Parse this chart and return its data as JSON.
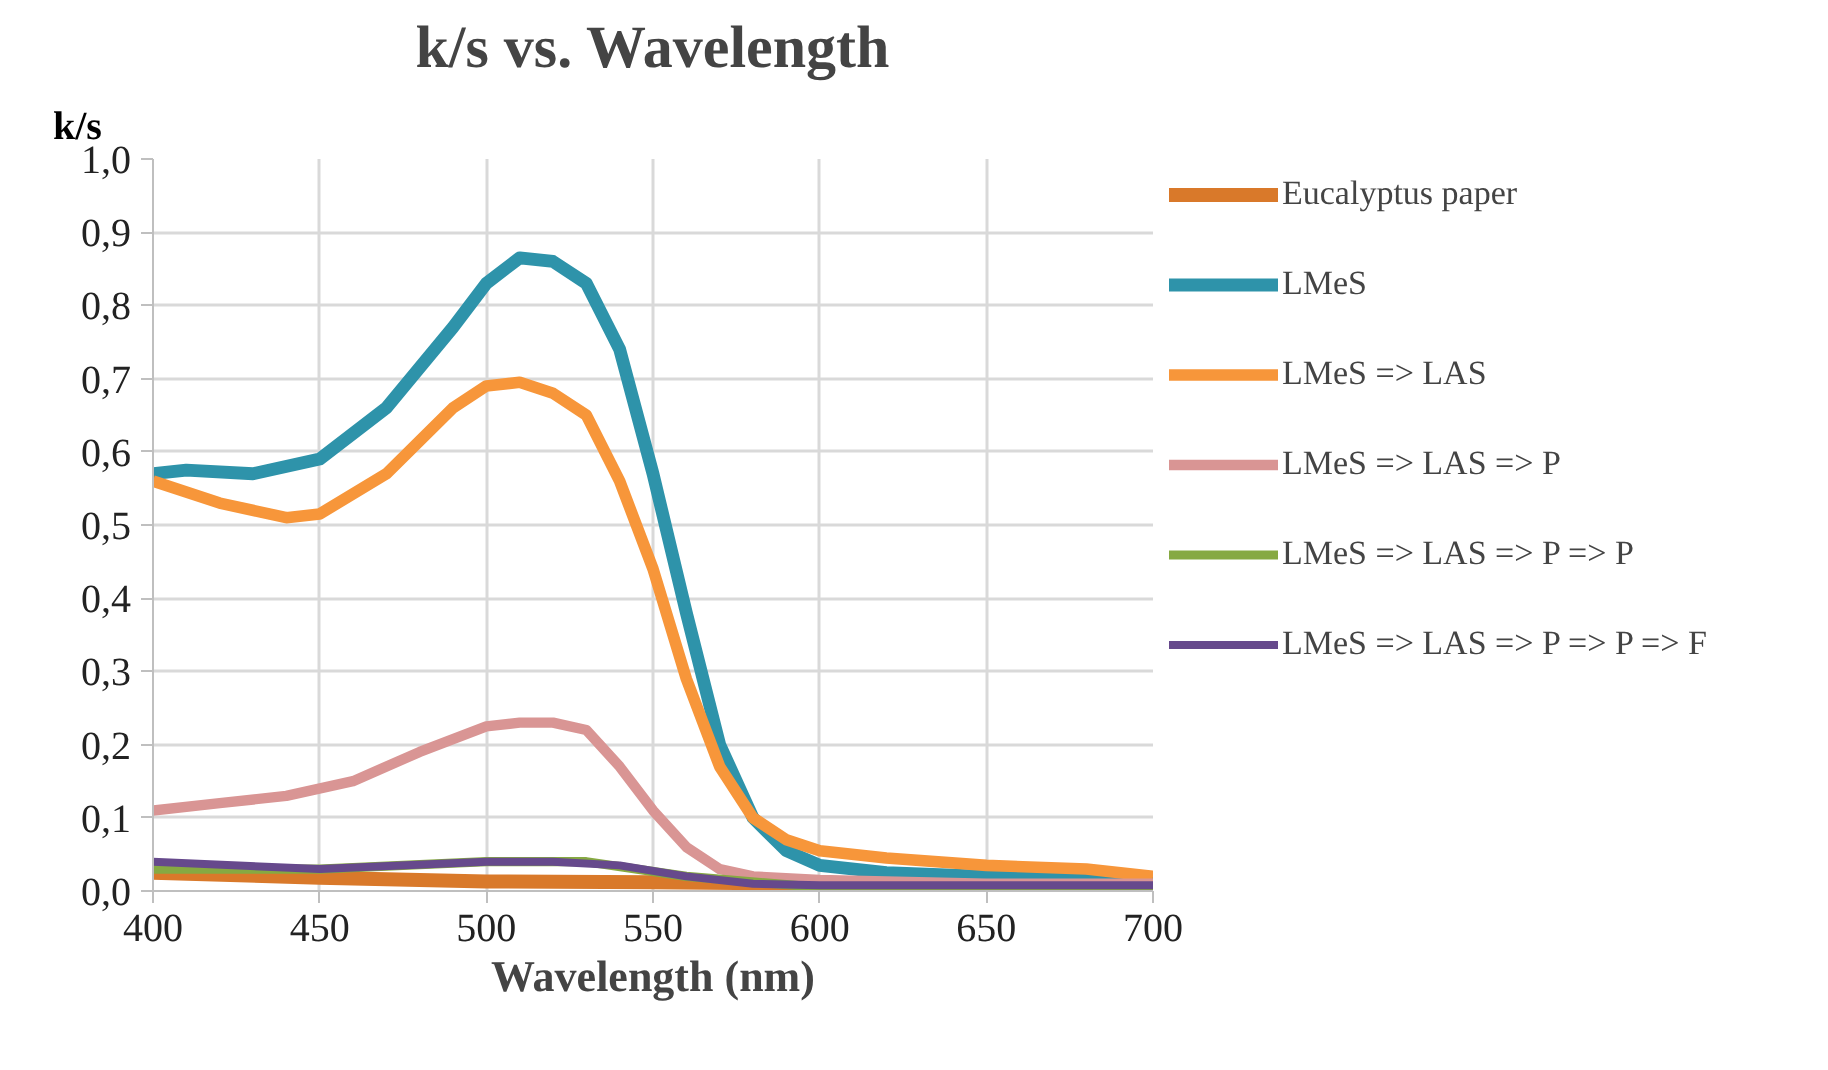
{
  "chart_data": {
    "type": "line",
    "title": "k/s vs. Wavelength",
    "xlabel": "Wavelength (nm)",
    "ylabel": "k/s",
    "xlim": [
      400,
      700
    ],
    "ylim": [
      0,
      1
    ],
    "xticks": [
      400,
      450,
      500,
      550,
      600,
      650,
      700
    ],
    "yticks": [
      {
        "value": 0,
        "label": "0,0"
      },
      {
        "value": 0.1,
        "label": "0,1"
      },
      {
        "value": 0.2,
        "label": "0,2"
      },
      {
        "value": 0.3,
        "label": "0,3"
      },
      {
        "value": 0.4,
        "label": "0,4"
      },
      {
        "value": 0.5,
        "label": "0,5"
      },
      {
        "value": 0.6,
        "label": "0,6"
      },
      {
        "value": 0.7,
        "label": "0,7"
      },
      {
        "value": 0.8,
        "label": "0,8"
      },
      {
        "value": 0.9,
        "label": "0,9"
      },
      {
        "value": 1,
        "label": "1,0"
      }
    ],
    "grid": true,
    "legend": "right",
    "marker": "none",
    "line_style": "solid",
    "series": [
      {
        "name": "Eucalyptus paper",
        "color": "#d9792a",
        "x": [
          400,
          450,
          500,
          550,
          600,
          700
        ],
        "values": [
          0.025,
          0.018,
          0.013,
          0.012,
          0.01,
          0.01
        ]
      },
      {
        "name": "LMeS",
        "color": "#2e93aa",
        "x": [
          400,
          410,
          430,
          450,
          470,
          490,
          500,
          510,
          520,
          530,
          540,
          550,
          560,
          570,
          580,
          590,
          600,
          620,
          650,
          700
        ],
        "values": [
          0.57,
          0.575,
          0.57,
          0.59,
          0.66,
          0.77,
          0.83,
          0.865,
          0.86,
          0.83,
          0.74,
          0.57,
          0.38,
          0.2,
          0.1,
          0.055,
          0.035,
          0.025,
          0.02,
          0.015
        ]
      },
      {
        "name": "LMeS => LAS",
        "color": "#f7963a",
        "x": [
          400,
          420,
          440,
          450,
          470,
          490,
          500,
          510,
          520,
          530,
          540,
          550,
          560,
          570,
          580,
          590,
          600,
          620,
          650,
          680,
          700
        ],
        "values": [
          0.56,
          0.53,
          0.51,
          0.515,
          0.57,
          0.66,
          0.69,
          0.695,
          0.68,
          0.65,
          0.56,
          0.44,
          0.29,
          0.17,
          0.1,
          0.07,
          0.055,
          0.045,
          0.035,
          0.03,
          0.02
        ]
      },
      {
        "name": "LMeS => LAS => P",
        "color": "#d99594",
        "x": [
          400,
          420,
          440,
          460,
          480,
          500,
          510,
          520,
          530,
          540,
          550,
          560,
          570,
          580,
          600,
          650,
          700
        ],
        "values": [
          0.11,
          0.12,
          0.13,
          0.15,
          0.19,
          0.225,
          0.23,
          0.23,
          0.22,
          0.17,
          0.11,
          0.06,
          0.03,
          0.02,
          0.015,
          0.01,
          0.01
        ]
      },
      {
        "name": "LMeS => LAS => P => P",
        "color": "#86a942",
        "x": [
          400,
          450,
          500,
          530,
          560,
          600,
          700
        ],
        "values": [
          0.03,
          0.03,
          0.04,
          0.04,
          0.02,
          0.005,
          0.005
        ]
      },
      {
        "name": "LMeS => LAS => P => P => F",
        "color": "#66498c",
        "x": [
          400,
          450,
          500,
          520,
          540,
          560,
          580,
          600,
          700
        ],
        "values": [
          0.04,
          0.03,
          0.04,
          0.04,
          0.035,
          0.02,
          0.01,
          0.008,
          0.008
        ]
      }
    ]
  }
}
